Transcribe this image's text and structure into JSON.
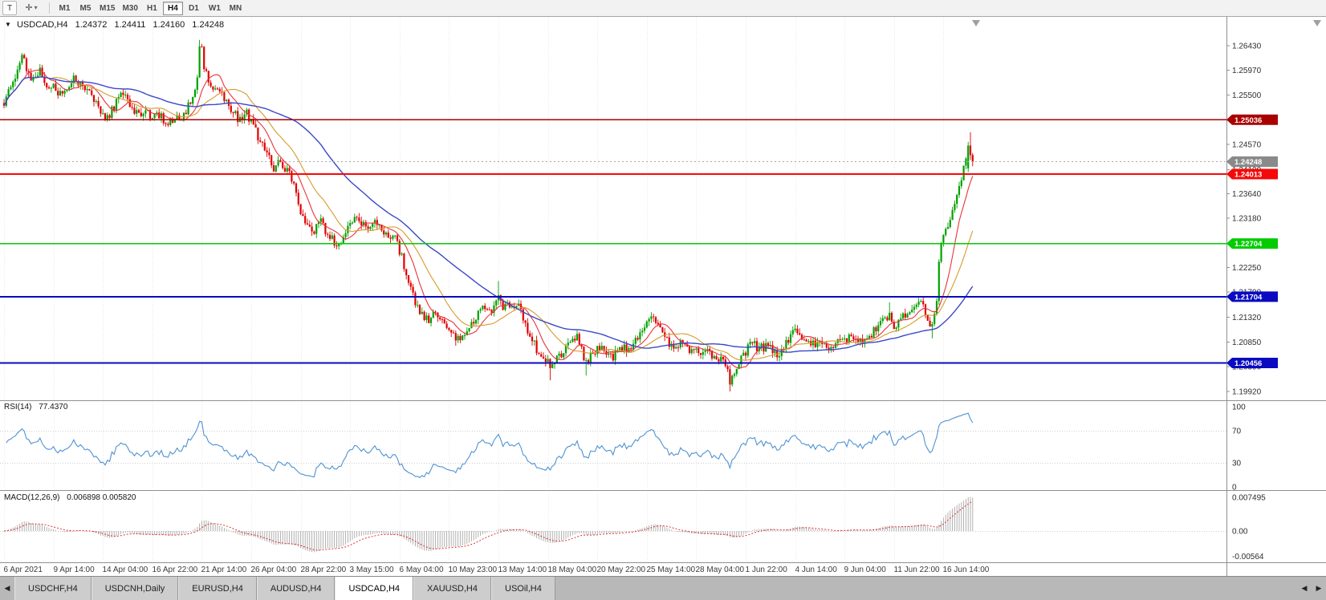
{
  "toolbar": {
    "tool_letter": "T",
    "timeframes": [
      "M1",
      "M5",
      "M15",
      "M30",
      "H1",
      "H4",
      "D1",
      "W1",
      "MN"
    ],
    "active_timeframe": "H4"
  },
  "icons": {
    "symbol_dropdown": "▼",
    "crosshair": "✛",
    "caret_down": "▾",
    "left_arrow": "◀",
    "right_arrow": "▶"
  },
  "main_chart": {
    "symbol": "USDCAD,H4",
    "open": "1.24372",
    "high": "1.24411",
    "low": "1.24160",
    "close": "1.24248"
  },
  "rsi_panel": {
    "label": "RSI(14)",
    "value": "77.4370"
  },
  "macd_panel": {
    "label": "MACD(12,26,9)",
    "value": "0.006898 0.005820"
  },
  "tabs": {
    "items": [
      "USDCHF,H4",
      "USDCNH,Daily",
      "EURUSD,H4",
      "AUDUSD,H4",
      "USDCAD,H4",
      "XAUUSD,H4",
      "USOil,H4"
    ],
    "active": "USDCAD,H4"
  },
  "chart_data": {
    "type": "candlestick",
    "symbol": "USDCAD",
    "timeframe": "H4",
    "candle_colors": {
      "up": "#00a000",
      "down": "#e00000"
    },
    "y_ticks": [
      "1.26430",
      "1.25970",
      "1.25500",
      "1.25030",
      "1.24570",
      "1.24100",
      "1.23640",
      "1.23180",
      "1.22710",
      "1.22250",
      "1.21790",
      "1.21320",
      "1.20850",
      "1.20390",
      "1.19920"
    ],
    "hlines": [
      {
        "price": 1.25036,
        "label": "1.25036",
        "color": "#a90000"
      },
      {
        "price": 1.24013,
        "label": "1.24013",
        "color": "#f50808"
      },
      {
        "price": 1.22704,
        "label": "1.22704",
        "color": "#00cc00"
      },
      {
        "price": 1.21704,
        "label": "1.21704",
        "color": "#0a0ac0"
      },
      {
        "price": 1.20456,
        "label": "1.20456",
        "color": "#0a0ac0"
      }
    ],
    "current_price": {
      "value": 1.24248,
      "label": "1.24248",
      "box_color": "#8a8a8a"
    },
    "x_labels": [
      [
        "6 Apr 2021",
        0
      ],
      [
        "9 Apr 14:00",
        22
      ],
      [
        "14 Apr 04:00",
        44
      ],
      [
        "16 Apr 22:00",
        66
      ],
      [
        "21 Apr 14:00",
        88
      ],
      [
        "26 Apr 04:00",
        110
      ],
      [
        "28 Apr 22:00",
        132
      ],
      [
        "3 May 15:00",
        154
      ],
      [
        "6 May 04:00",
        176
      ],
      [
        "10 May 23:00",
        198
      ],
      [
        "13 May 14:00",
        220
      ],
      [
        "18 May 04:00",
        242
      ],
      [
        "20 May 22:00",
        264
      ],
      [
        "25 May 14:00",
        286
      ],
      [
        "28 May 04:00",
        308
      ],
      [
        "1 Jun 22:00",
        330
      ],
      [
        "4 Jun 14:00",
        352
      ],
      [
        "9 Jun 04:00",
        374
      ],
      [
        "11 Jun 22:00",
        396
      ],
      [
        "16 Jun 14:00",
        418
      ]
    ],
    "price_path": [
      [
        0,
        1.2535
      ],
      [
        2,
        1.2565
      ],
      [
        5,
        1.2585
      ],
      [
        8,
        1.2622
      ],
      [
        10,
        1.26
      ],
      [
        13,
        1.2578
      ],
      [
        16,
        1.2598
      ],
      [
        19,
        1.2562
      ],
      [
        22,
        1.2572
      ],
      [
        25,
        1.255
      ],
      [
        28,
        1.256
      ],
      [
        31,
        1.2585
      ],
      [
        34,
        1.257
      ],
      [
        38,
        1.2552
      ],
      [
        42,
        1.253
      ],
      [
        46,
        1.2506
      ],
      [
        49,
        1.2528
      ],
      [
        52,
        1.2552
      ],
      [
        56,
        1.2535
      ],
      [
        60,
        1.2512
      ],
      [
        63,
        1.2528
      ],
      [
        66,
        1.2506
      ],
      [
        69,
        1.2512
      ],
      [
        72,
        1.25
      ],
      [
        75,
        1.2498
      ],
      [
        78,
        1.2508
      ],
      [
        81,
        1.2522
      ],
      [
        84,
        1.2542
      ],
      [
        86,
        1.2592
      ],
      [
        87,
        1.2635
      ],
      [
        88,
        1.2638
      ],
      [
        89,
        1.26
      ],
      [
        91,
        1.258
      ],
      [
        93,
        1.2562
      ],
      [
        96,
        1.2558
      ],
      [
        99,
        1.254
      ],
      [
        102,
        1.2518
      ],
      [
        105,
        1.2502
      ],
      [
        108,
        1.2516
      ],
      [
        111,
        1.2495
      ],
      [
        114,
        1.2462
      ],
      [
        117,
        1.244
      ],
      [
        120,
        1.2412
      ],
      [
        123,
        1.2428
      ],
      [
        126,
        1.2406
      ],
      [
        129,
        1.2388
      ],
      [
        132,
        1.2332
      ],
      [
        135,
        1.2305
      ],
      [
        138,
        1.2292
      ],
      [
        141,
        1.2312
      ],
      [
        144,
        1.2288
      ],
      [
        147,
        1.2272
      ],
      [
        150,
        1.2268
      ],
      [
        153,
        1.2296
      ],
      [
        156,
        1.2318
      ],
      [
        159,
        1.2305
      ],
      [
        162,
        1.2298
      ],
      [
        165,
        1.2312
      ],
      [
        168,
        1.2295
      ],
      [
        171,
        1.2286
      ],
      [
        174,
        1.2278
      ],
      [
        177,
        1.2246
      ],
      [
        180,
        1.2196
      ],
      [
        183,
        1.2156
      ],
      [
        186,
        1.2136
      ],
      [
        189,
        1.2126
      ],
      [
        192,
        1.2142
      ],
      [
        195,
        1.2122
      ],
      [
        198,
        1.2108
      ],
      [
        201,
        1.2088
      ],
      [
        204,
        1.2098
      ],
      [
        207,
        1.2118
      ],
      [
        210,
        1.2132
      ],
      [
        213,
        1.2152
      ],
      [
        216,
        1.2142
      ],
      [
        219,
        1.2158
      ],
      [
        220,
        1.217
      ],
      [
        222,
        1.2148
      ],
      [
        225,
        1.2152
      ],
      [
        228,
        1.2158
      ],
      [
        231,
        1.2132
      ],
      [
        234,
        1.2098
      ],
      [
        237,
        1.2072
      ],
      [
        240,
        1.2055
      ],
      [
        243,
        1.204
      ],
      [
        246,
        1.2052
      ],
      [
        249,
        1.2068
      ],
      [
        252,
        1.2082
      ],
      [
        255,
        1.2096
      ],
      [
        257,
        1.2072
      ],
      [
        259,
        1.2046
      ],
      [
        262,
        1.2068
      ],
      [
        265,
        1.2078
      ],
      [
        268,
        1.2062
      ],
      [
        271,
        1.2058
      ],
      [
        274,
        1.2075
      ],
      [
        277,
        1.207
      ],
      [
        280,
        1.2082
      ],
      [
        283,
        1.2098
      ],
      [
        286,
        1.2118
      ],
      [
        289,
        1.2128
      ],
      [
        292,
        1.2108
      ],
      [
        295,
        1.2086
      ],
      [
        298,
        1.2072
      ],
      [
        301,
        1.2082
      ],
      [
        304,
        1.2076
      ],
      [
        307,
        1.2068
      ],
      [
        310,
        1.2062
      ],
      [
        313,
        1.2068
      ],
      [
        316,
        1.2058
      ],
      [
        319,
        1.2052
      ],
      [
        322,
        1.2036
      ],
      [
        323,
        1.2008
      ],
      [
        325,
        1.2032
      ],
      [
        327,
        1.2052
      ],
      [
        330,
        1.2068
      ],
      [
        333,
        1.2082
      ],
      [
        336,
        1.2072
      ],
      [
        339,
        1.2076
      ],
      [
        342,
        1.2068
      ],
      [
        345,
        1.2062
      ],
      [
        348,
        1.2082
      ],
      [
        350,
        1.2102
      ],
      [
        352,
        1.2108
      ],
      [
        355,
        1.2088
      ],
      [
        358,
        1.2078
      ],
      [
        361,
        1.2082
      ],
      [
        364,
        1.2086
      ],
      [
        367,
        1.2076
      ],
      [
        370,
        1.208
      ],
      [
        373,
        1.2086
      ],
      [
        376,
        1.2092
      ],
      [
        379,
        1.2084
      ],
      [
        382,
        1.209
      ],
      [
        385,
        1.2098
      ],
      [
        388,
        1.2108
      ],
      [
        391,
        1.2122
      ],
      [
        394,
        1.214
      ],
      [
        396,
        1.2112
      ],
      [
        399,
        1.2128
      ],
      [
        402,
        1.2142
      ],
      [
        405,
        1.2152
      ],
      [
        408,
        1.2158
      ],
      [
        410,
        1.2138
      ],
      [
        412,
        1.2118
      ],
      [
        414,
        1.2135
      ],
      [
        415,
        1.216
      ],
      [
        416,
        1.223
      ],
      [
        417,
        1.228
      ],
      [
        419,
        1.23
      ],
      [
        421,
        1.2315
      ],
      [
        423,
        1.235
      ],
      [
        425,
        1.2385
      ],
      [
        427,
        1.241
      ],
      [
        428,
        1.2425
      ],
      [
        431,
        1.244
      ]
    ],
    "wick_events": [
      {
        "i": 87,
        "h": 1.2654
      },
      {
        "i": 201,
        "l": 1.2078
      },
      {
        "i": 220,
        "h": 1.22
      },
      {
        "i": 243,
        "l": 1.2013
      },
      {
        "i": 259,
        "l": 1.2022
      },
      {
        "i": 323,
        "l": 1.1992
      },
      {
        "i": 394,
        "h": 1.216
      },
      {
        "i": 413,
        "l": 1.2092
      }
    ],
    "final_candles": [
      {
        "i": 429,
        "o": 1.2412,
        "h": 1.2462,
        "l": 1.2405,
        "c": 1.2455
      },
      {
        "i": 430,
        "o": 1.2455,
        "h": 1.248,
        "l": 1.2428,
        "c": 1.2437
      },
      {
        "i": 431,
        "o": 1.24372,
        "h": 1.24411,
        "l": 1.2416,
        "c": 1.24248
      }
    ],
    "moving_averages": [
      {
        "period": 10,
        "color": "#e8343a",
        "width": 1.1
      },
      {
        "period": 22,
        "color": "#d69b2a",
        "width": 1.1
      },
      {
        "period": 55,
        "color": "#3b48c8",
        "width": 1.4
      }
    ],
    "rsi": {
      "period": 14,
      "color": "#4f92d2",
      "last": 77.437,
      "levels": [
        70,
        30
      ],
      "scale": [
        [
          "100",
          100
        ],
        [
          "70",
          70
        ],
        [
          "30",
          30
        ],
        [
          "0",
          0
        ]
      ]
    },
    "macd": {
      "histogram_color": "#a8a8a8",
      "signal_color": "#e03030",
      "last_values": [
        0.006898,
        0.00582
      ],
      "scale": [
        [
          "0.007495",
          0.007495
        ],
        [
          "0.00",
          0
        ],
        [
          "-0.00564",
          -0.00564
        ]
      ]
    }
  }
}
